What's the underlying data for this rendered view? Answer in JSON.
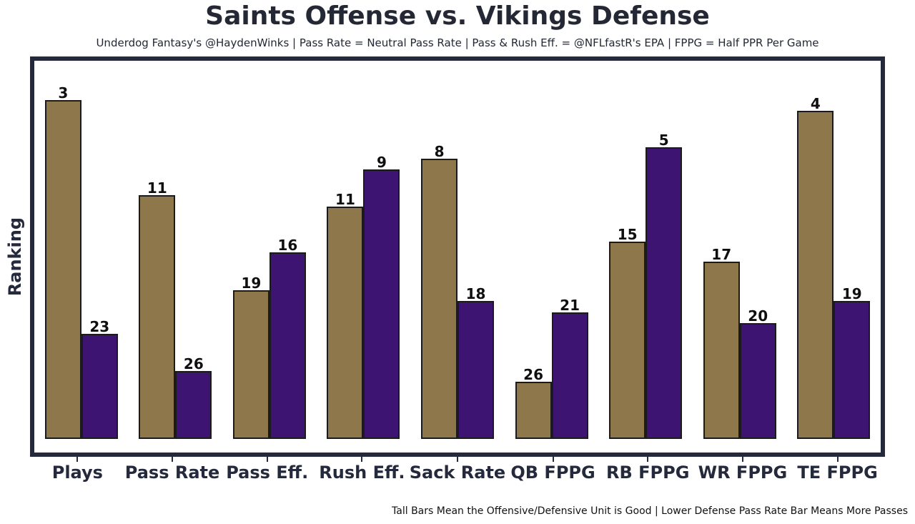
{
  "header": {
    "title": "Saints Offense vs. Vikings Defense",
    "subtitle": "Underdog Fantasy's @HaydenWinks | Pass Rate = Neutral Pass Rate | Pass & Rush Eff. = @NFLfastR's EPA | FPPG = Half PPR Per Game"
  },
  "footnote": "Tall Bars Mean the Offensive/Defensive Unit is Good | Lower Defense Pass Rate Bar Means More Passes",
  "colors": {
    "offense_bar": "#8E784B",
    "defense_bar": "#3D1472",
    "bar_edge": "#1B1B1B",
    "frame": "#242A3B",
    "heading_text": "#232834",
    "axis_text": "#242A3B",
    "value_label_text": "#0F0F0F",
    "footnote_text": "#111111",
    "background": "#FFFFFF"
  },
  "chart_data": {
    "type": "bar",
    "title": "Saints Offense vs. Vikings Defense",
    "xlabel": "",
    "ylabel": "Ranking",
    "categories": [
      "Plays",
      "Pass Rate",
      "Pass Eff.",
      "Rush Eff.",
      "Sack Rate",
      "QB FPPG",
      "RB FPPG",
      "WR FPPG",
      "TE FPPG"
    ],
    "series": [
      {
        "name": "Saints Offense",
        "color": "#8E784B",
        "values": [
          3,
          11,
          19,
          11,
          8,
          26,
          15,
          17,
          4
        ],
        "bar_height_pct": [
          89.6,
          64.5,
          39.3,
          61.4,
          74.1,
          15.1,
          52.2,
          46.9,
          86.8
        ]
      },
      {
        "name": "Vikings Defense",
        "color": "#3D1472",
        "values": [
          23,
          26,
          16,
          9,
          18,
          21,
          5,
          20,
          19
        ],
        "bar_height_pct": [
          27.8,
          18.0,
          49.3,
          71.3,
          36.5,
          33.5,
          77.1,
          30.6,
          36.5
        ]
      }
    ],
    "value_semantics": "Bar labels are NFL ranks (1 = best of 32); taller bar = better unit",
    "grid": false,
    "legend_position": "none"
  }
}
